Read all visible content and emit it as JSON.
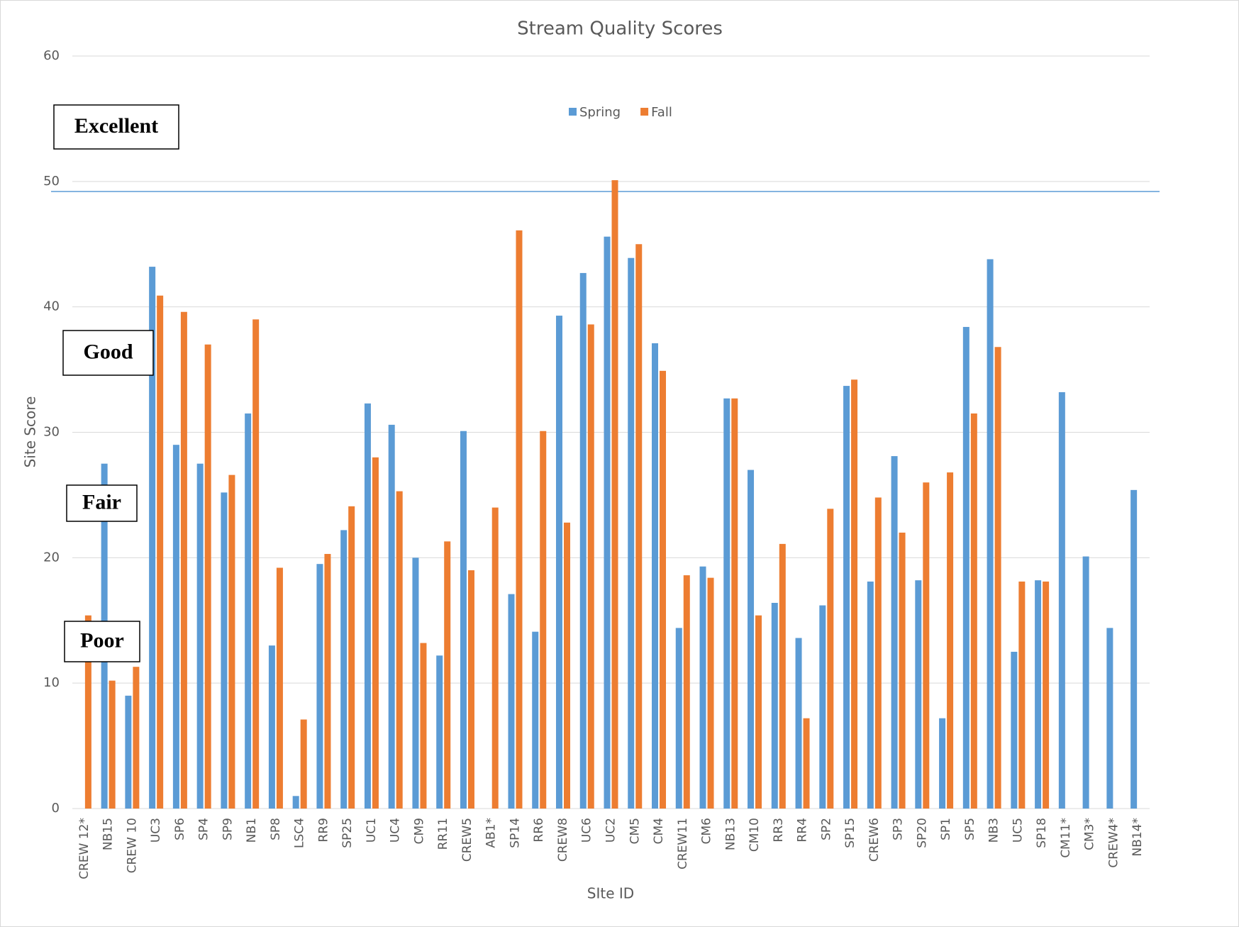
{
  "chart_data": {
    "type": "bar",
    "title": "Stream Quality Scores",
    "x_label": "SIte ID",
    "y_label": "Site Score",
    "categories": [
      "CREW 12*",
      "NB15",
      "CREW 10",
      "UC3",
      "SP6",
      "SP4",
      "SP9",
      "NB1",
      "SP8",
      "LSC4",
      "RR9",
      "SP25",
      "UC1",
      "UC4",
      "CM9",
      "RR11",
      "CREW5",
      "AB1*",
      "SP14",
      "RR6",
      "CREW8",
      "UC6",
      "UC2",
      "CM5",
      "CM4",
      "CREW11",
      "CM6",
      "NB13",
      "CM10",
      "RR3",
      "RR4",
      "SP2",
      "SP15",
      "CREW6",
      "SP3",
      "SP20",
      "SP1",
      "SP5",
      "NB3",
      "UC5",
      "SP18",
      "CM11*",
      "CM3*",
      "CREW4*",
      "NB14*"
    ],
    "series": [
      {
        "name": "Spring",
        "color": "#5b9bd5",
        "values": [
          null,
          27.5,
          9,
          43.2,
          29,
          27.5,
          25.2,
          31.5,
          13,
          1,
          19.5,
          22.2,
          32.3,
          30.6,
          20,
          12.2,
          30.1,
          null,
          17.1,
          14.1,
          39.3,
          42.7,
          45.6,
          43.9,
          37.1,
          14.4,
          19.3,
          32.7,
          27,
          16.4,
          13.6,
          16.2,
          33.7,
          18.1,
          28.1,
          18.2,
          7.2,
          38.4,
          43.8,
          12.5,
          18.2,
          33.2,
          20.1,
          14.4,
          25.4
        ]
      },
      {
        "name": "Fall",
        "color": "#ed7d31",
        "values": [
          15.4,
          10.2,
          11.3,
          40.9,
          39.6,
          37,
          26.6,
          39,
          19.2,
          7.1,
          20.3,
          24.1,
          28,
          25.3,
          13.2,
          21.3,
          19,
          24,
          46.1,
          30.1,
          22.8,
          38.6,
          50.1,
          45,
          34.9,
          18.6,
          18.4,
          32.7,
          15.4,
          21.1,
          7.2,
          23.9,
          34.2,
          24.8,
          22,
          26,
          26.8,
          31.5,
          36.8,
          18.1,
          18.1,
          null,
          null,
          null,
          null
        ]
      }
    ],
    "ylim": [
      0,
      60
    ],
    "yticks": [
      0,
      10,
      20,
      30,
      40,
      50,
      60
    ],
    "grid": true,
    "legend": "top",
    "reference_line": 49.2,
    "annotations": [
      "Excellent",
      "Good",
      "Fair",
      "Poor"
    ]
  }
}
